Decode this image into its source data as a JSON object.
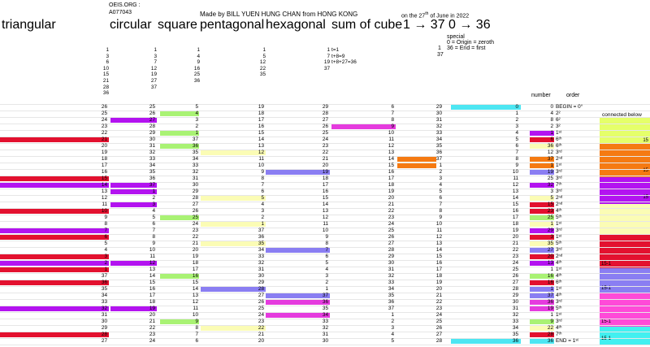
{
  "colors": {
    "red": "#e3112f",
    "purple": "#b313f0",
    "green": "#a9f274",
    "yellow": "#fbfcb5",
    "blue": "#8a7ef2",
    "magenta": "#e53bde",
    "orange": "#f57a12",
    "cyan": "#4de6f2",
    "pink": "#ff4ad8",
    "lightcyan": "#42f0f0"
  },
  "header": {
    "oeis": "OEIS.ORG :",
    "aid": "A077043",
    "made_by": "Made by BILL YUEN HUNG CHAN from HONG KONG",
    "date_prefix": "on the 27",
    "date_sup": "th",
    "date_suffix": " of June in 2022",
    "triangular": "triangular",
    "circular": "circular",
    "square": "square",
    "pentagonal": "pentagonal",
    "hexagonal": "hexagonal",
    "sum_of_cube": "sum of cube",
    "range1": "1 → 37",
    "range2": "0 → 36",
    "special": "special",
    "special1": "0 = Origin = zeroth",
    "special2": "36 = End = first",
    "special_n1": "1",
    "special_n2": "37",
    "number": "number",
    "order": "order",
    "connected_below": "connected below"
  },
  "top_lists": {
    "triangular": [
      "1",
      "3",
      "6",
      "10",
      "15",
      "21",
      "28",
      "36"
    ],
    "circular": [
      "1",
      "3",
      "7",
      "12",
      "19",
      "27",
      "37"
    ],
    "square": [
      "1",
      "4",
      "9",
      "16",
      "25",
      "36"
    ],
    "pentagonal": [
      "1",
      "5",
      "12",
      "22",
      "35"
    ],
    "cube": [
      "t=1",
      "t+8=9",
      "t+8+27=36"
    ],
    "cube_idx": [
      "1",
      "7",
      "19",
      "37"
    ]
  },
  "rows": [
    [
      "26",
      "25",
      "5",
      "19",
      "29",
      "6",
      "29",
      "0",
      "0",
      "BEGIN = 0°"
    ],
    [
      "25",
      "26",
      "4",
      "18",
      "28",
      "7",
      "30",
      "1",
      "4",
      "2²"
    ],
    [
      "24",
      "27",
      "3",
      "17",
      "27",
      "8",
      "31",
      "2",
      "8",
      "6²"
    ],
    [
      "23",
      "28",
      "2",
      "16",
      "26",
      "9",
      "32",
      "3",
      "2",
      "3²"
    ],
    [
      "22",
      "29",
      "1",
      "15",
      "25",
      "10",
      "33",
      "4",
      "1",
      "1ˢᵗ"
    ],
    [
      "21",
      "30",
      "37",
      "14",
      "24",
      "11",
      "34",
      "5",
      "6",
      "6ᵗʰ"
    ],
    [
      "20",
      "31",
      "36",
      "13",
      "23",
      "12",
      "35",
      "6",
      "36",
      "6ᵗʰ"
    ],
    [
      "19",
      "32",
      "35",
      "12",
      "22",
      "13",
      "36",
      "7",
      "12",
      "3ʳᵈ"
    ],
    [
      "18",
      "33",
      "34",
      "11",
      "21",
      "14",
      "37",
      "8",
      "37",
      "2ⁿᵈ"
    ],
    [
      "17",
      "34",
      "33",
      "10",
      "20",
      "15",
      "1",
      "9",
      "1",
      "1ˢᵗ"
    ],
    [
      "16",
      "35",
      "32",
      "9",
      "19",
      "16",
      "2",
      "10",
      "19",
      "3ʳᵈ"
    ],
    [
      "15",
      "36",
      "31",
      "8",
      "18",
      "17",
      "3",
      "11",
      "25",
      "3ʳᵈ"
    ],
    [
      "14",
      "37",
      "30",
      "7",
      "17",
      "18",
      "4",
      "12",
      "32",
      "7ᵗʰ"
    ],
    [
      "13",
      "1",
      "29",
      "6",
      "16",
      "19",
      "5",
      "13",
      "3",
      "3ʳᵈ"
    ],
    [
      "12",
      "2",
      "28",
      "5",
      "15",
      "20",
      "6",
      "14",
      "5",
      "2ⁿᵈ"
    ],
    [
      "11",
      "3",
      "27",
      "4",
      "14",
      "21",
      "7",
      "15",
      "15",
      "2ⁿᵈ"
    ],
    [
      "10",
      "4",
      "26",
      "3",
      "13",
      "22",
      "8",
      "16",
      "23",
      "4ᵗʰ"
    ],
    [
      "9",
      "5",
      "25",
      "2",
      "12",
      "23",
      "9",
      "17",
      "25",
      "5ᵗʰ"
    ],
    [
      "8",
      "6",
      "24",
      "1",
      "11",
      "24",
      "10",
      "18",
      "1",
      "1ˢᵗ"
    ],
    [
      "7",
      "7",
      "23",
      "37",
      "10",
      "25",
      "11",
      "19",
      "29",
      "3ʳᵈ"
    ],
    [
      "6",
      "8",
      "22",
      "36",
      "9",
      "26",
      "12",
      "20",
      "3",
      "1ˢᵗ"
    ],
    [
      "5",
      "9",
      "21",
      "35",
      "8",
      "27",
      "13",
      "21",
      "35",
      "5ᵗʰ"
    ],
    [
      "4",
      "10",
      "20",
      "34",
      "7",
      "28",
      "14",
      "22",
      "27",
      "3ʳᵈ"
    ],
    [
      "3",
      "11",
      "19",
      "33",
      "6",
      "29",
      "15",
      "23",
      "20",
      "2ⁿᵈ"
    ],
    [
      "2",
      "12",
      "18",
      "32",
      "5",
      "30",
      "16",
      "24",
      "13",
      "4ᵗʰ"
    ],
    [
      "1",
      "13",
      "17",
      "31",
      "4",
      "31",
      "17",
      "25",
      "1",
      "1ˢᵗ"
    ],
    [
      "37",
      "14",
      "16",
      "30",
      "3",
      "32",
      "18",
      "26",
      "16",
      "4ᵗʰ"
    ],
    [
      "36",
      "15",
      "15",
      "29",
      "2",
      "33",
      "19",
      "27",
      "16",
      "6ᵗʰ"
    ],
    [
      "35",
      "16",
      "14",
      "28",
      "1",
      "34",
      "20",
      "28",
      "1",
      "1ˢᵗ"
    ],
    [
      "34",
      "17",
      "13",
      "27",
      "37",
      "35",
      "21",
      "29",
      "37",
      "4ᵗʰ"
    ],
    [
      "33",
      "18",
      "12",
      "26",
      "36",
      "36",
      "22",
      "30",
      "36",
      "3ʳᵈ"
    ],
    [
      "32",
      "19",
      "11",
      "25",
      "35",
      "37",
      "23",
      "31",
      "19",
      "5ᵗʰ"
    ],
    [
      "31",
      "20",
      "10",
      "24",
      "34",
      "1",
      "24",
      "32",
      "1",
      "1ˢᵗ"
    ],
    [
      "30",
      "21",
      "9",
      "23",
      "33",
      "2",
      "25",
      "33",
      "9",
      "3ʳᵈ"
    ],
    [
      "29",
      "22",
      "8",
      "22",
      "32",
      "3",
      "26",
      "34",
      "22",
      "4ᵗʰ"
    ],
    [
      "28",
      "23",
      "7",
      "21",
      "31",
      "4",
      "27",
      "35",
      "28",
      "7ᵗʰ"
    ],
    [
      "27",
      "24",
      "6",
      "20",
      "30",
      "5",
      "28",
      "36",
      "36",
      "END = 1ˢᵗ"
    ]
  ],
  "side_labels": {
    "l1": "15",
    "l2": "15",
    "l3": "15",
    "l4": "15-1",
    "l5": "15-1",
    "l6": "15-1",
    "l7": "15-1"
  }
}
